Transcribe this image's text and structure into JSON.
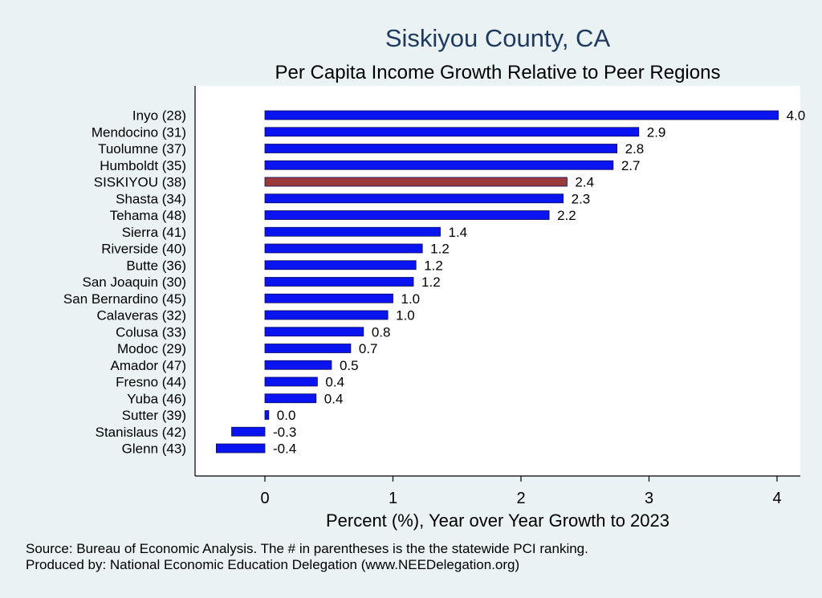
{
  "chart_data": {
    "type": "bar",
    "orientation": "horizontal",
    "title": "Siskiyou County, CA",
    "subtitle": "Per Capita Income Growth Relative to Peer Regions",
    "xlabel": "Percent (%), Year over Year Growth to 2023",
    "ylabel": "",
    "xlim": [
      -0.55,
      4.18
    ],
    "xticks": [
      "0",
      "1",
      "2",
      "3",
      "4"
    ],
    "grid": false,
    "categories": [
      "Inyo (28)",
      "Mendocino (31)",
      "Tuolumne (37)",
      "Humboldt (35)",
      "SISKIYOU (38)",
      "Shasta (34)",
      "Tehama (48)",
      "Sierra (41)",
      "Riverside (40)",
      "Butte (36)",
      "San Joaquin (30)",
      "San Bernardino (45)",
      "Calaveras (32)",
      "Colusa (33)",
      "Modoc (29)",
      "Amador (47)",
      "Fresno (44)",
      "Yuba (46)",
      "Sutter (39)",
      "Stanislaus (42)",
      "Glenn (43)"
    ],
    "values": [
      4.01,
      2.92,
      2.75,
      2.72,
      2.36,
      2.33,
      2.22,
      1.37,
      1.23,
      1.18,
      1.16,
      1.0,
      0.96,
      0.77,
      0.67,
      0.52,
      0.41,
      0.4,
      0.03,
      -0.26,
      -0.38
    ],
    "value_labels": [
      "4.0",
      "2.9",
      "2.8",
      "2.7",
      "2.4",
      "2.3",
      "2.2",
      "1.4",
      "1.2",
      "1.2",
      "1.2",
      "1.0",
      "1.0",
      "0.8",
      "0.7",
      "0.5",
      "0.4",
      "0.4",
      "0.0",
      "-0.3",
      "-0.4"
    ],
    "highlight": "SISKIYOU (38)",
    "colors": {
      "bar": "#0a14f0",
      "highlight": "#9a3b3b",
      "bar_stroke": "#0a0a5a"
    }
  },
  "notes": {
    "source": "Source: Bureau of Economic Analysis. The # in parentheses is the the statewide PCI ranking.",
    "produced": "Produced by: National Economic Education Delegation (www.NEEDelegation.org)"
  }
}
